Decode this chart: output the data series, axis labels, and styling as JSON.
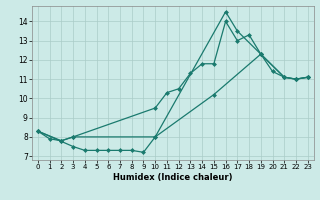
{
  "xlabel": "Humidex (Indice chaleur)",
  "background_color": "#cceae7",
  "grid_color": "#aaccc8",
  "line_color": "#1a7a6e",
  "xlim": [
    -0.5,
    23.5
  ],
  "ylim": [
    6.8,
    14.8
  ],
  "xticks": [
    0,
    1,
    2,
    3,
    4,
    5,
    6,
    7,
    8,
    9,
    10,
    11,
    12,
    13,
    14,
    15,
    16,
    17,
    18,
    19,
    20,
    21,
    22,
    23
  ],
  "yticks": [
    7,
    8,
    9,
    10,
    11,
    12,
    13,
    14
  ],
  "line1_x": [
    0,
    1,
    2,
    3,
    10,
    16,
    17,
    19,
    21,
    22,
    23
  ],
  "line1_y": [
    8.3,
    7.9,
    7.8,
    8.0,
    8.0,
    14.5,
    13.5,
    12.3,
    11.1,
    11.0,
    11.1
  ],
  "line2_x": [
    0,
    2,
    3,
    10,
    11,
    12,
    13,
    14,
    15,
    16,
    17,
    18,
    19,
    20,
    21,
    22,
    23
  ],
  "line2_y": [
    8.3,
    7.8,
    8.0,
    9.5,
    10.3,
    10.5,
    11.3,
    11.8,
    11.8,
    14.0,
    13.0,
    13.3,
    12.3,
    11.4,
    11.1,
    11.0,
    11.1
  ],
  "line3_x": [
    0,
    3,
    4,
    5,
    6,
    7,
    8,
    9,
    10,
    15,
    19,
    21,
    22,
    23
  ],
  "line3_y": [
    8.3,
    7.5,
    7.3,
    7.3,
    7.3,
    7.3,
    7.3,
    7.2,
    8.0,
    10.2,
    12.3,
    11.1,
    11.0,
    11.1
  ]
}
